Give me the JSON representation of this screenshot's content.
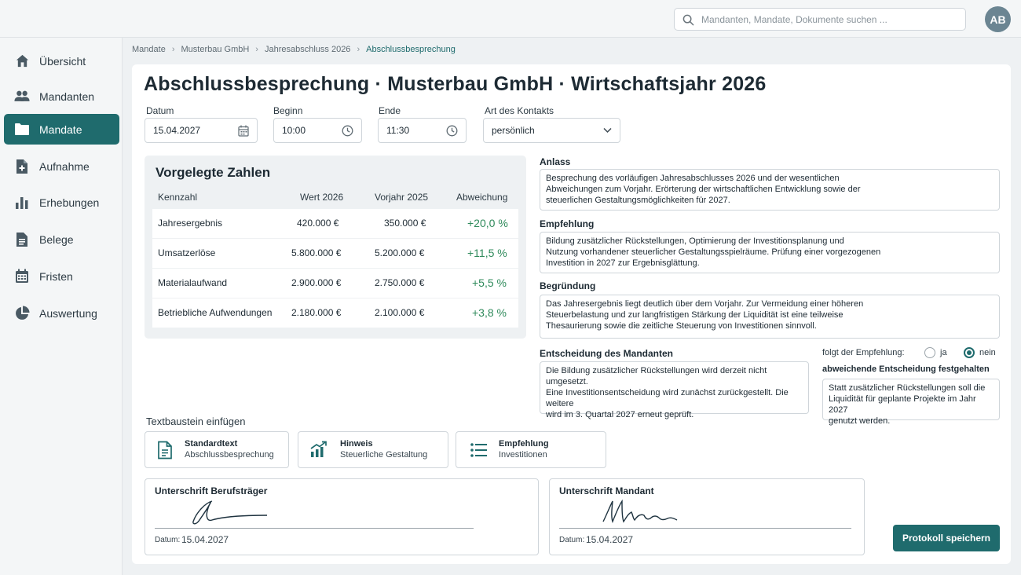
{
  "search": {
    "placeholder": "Mandanten, Mandate, Dokumente suchen ..."
  },
  "user": {
    "initials": "AB"
  },
  "sidebar": {
    "items": [
      {
        "label": "Übersicht",
        "icon": "home-icon"
      },
      {
        "label": "Mandanten",
        "icon": "people-icon"
      },
      {
        "label": "Mandate",
        "icon": "folder-icon",
        "active": true
      },
      {
        "label": "Aufnahme",
        "icon": "file-add-icon"
      },
      {
        "label": "Erhebungen",
        "icon": "bar-chart-icon"
      },
      {
        "label": "Belege",
        "icon": "document-icon"
      },
      {
        "label": "Fristen",
        "icon": "calendar-icon"
      },
      {
        "label": "Auswertung",
        "icon": "pie-chart-icon"
      }
    ]
  },
  "breadcrumb": [
    "Mandate",
    "Musterbau GmbH",
    "Jahresabschluss 2026",
    "Abschlussbesprechung"
  ],
  "page": {
    "title": "Abschlussbesprechung · Musterbau GmbH · Wirtschaftsjahr 2026"
  },
  "form": {
    "date_label": "Datum",
    "date_value": "15.04.2027",
    "start_label": "Beginn",
    "start_value": "10:00",
    "end_label": "Ende",
    "end_value": "11:30",
    "contact_label": "Art des Kontakts",
    "contact_value": "persönlich"
  },
  "figures": {
    "title": "Vorgelegte Zahlen",
    "headers": [
      "Kennzahl",
      "Wert 2026",
      "Vorjahr 2025",
      "Abweichung"
    ],
    "rows": [
      {
        "name": "Jahresergebnis",
        "value": "420.000 €",
        "prev": "350.000 €",
        "dev": "+20,0 %"
      },
      {
        "name": "Umsatzerlöse",
        "value": "5.800.000 €",
        "prev": "5.200.000 €",
        "dev": "+11,5 %"
      },
      {
        "name": "Materialaufwand",
        "value": "2.900.000 €",
        "prev": "2.750.000 €",
        "dev": "+5,5 %"
      },
      {
        "name": "Betriebliche Aufwendungen",
        "value": "2.180.000 €",
        "prev": "2.100.000 €",
        "dev": "+3,8 %"
      }
    ]
  },
  "notes": {
    "anlass_label": "Anlass",
    "anlass_lines": [
      "Besprechung des vorläufigen Jahresabschlusses 2026 und der wesentlichen",
      "Abweichungen zum Vorjahr. Erörterung der wirtschaftlichen Entwicklung sowie der",
      "steuerlichen Gestaltungsmöglichkeiten für 2027."
    ],
    "empfehlung_label": "Empfehlung",
    "empfehlung_lines": [
      "Bildung zusätzlicher Rückstellungen, Optimierung der Investitionsplanung und",
      "Nutzung vorhandener steuerlicher Gestaltungsspielräume. Prüfung einer vorgezogenen",
      "Investition in 2027 zur Ergebnisglättung."
    ],
    "begruendung_label": "Begründung",
    "begruendung_lines": [
      "Das Jahresergebnis liegt deutlich über dem Vorjahr. Zur Vermeidung einer höheren",
      "Steuerbelastung und zur langfristigen Stärkung der Liquidität ist eine teilweise",
      "Thesaurierung sowie die zeitliche Steuerung von Investitionen sinnvoll."
    ],
    "entscheidung_label": "Entscheidung des Mandanten",
    "entscheidung_lines": [
      "Die Bildung zusätzlicher Rückstellungen wird derzeit nicht umgesetzt.",
      "Eine Investitionsentscheidung wird zunächst zurückgestellt. Die weitere",
      "wird im 3. Quartal 2027 erneut geprüft."
    ],
    "follows_label": "folgt der Empfehlung:",
    "yes_label": "ja",
    "no_label": "nein",
    "follows_recommendation": false,
    "deviating_label": "abweichende Entscheidung festgehalten",
    "deviating_lines": [
      "Statt zusätzlicher Rückstellungen soll die",
      "Liquidität für geplante Projekte im Jahr 2027",
      "genutzt werden."
    ]
  },
  "snippets": {
    "label": "Textbaustein einfügen",
    "items": [
      {
        "title": "Standardtext",
        "subtitle": "Abschlussbesprechung",
        "icon": "document-icon"
      },
      {
        "title": "Hinweis",
        "subtitle": "Steuerliche Gestaltung",
        "icon": "growth-chart-icon"
      },
      {
        "title": "Empfehlung",
        "subtitle": "Investitionen",
        "icon": "list-icon"
      }
    ]
  },
  "signatures": {
    "advisor_label": "Unterschrift Berufsträger",
    "client_label": "Unterschrift Mandant",
    "date_label": "Datum:",
    "advisor_date": "15.04.2027",
    "client_date": "15.04.2027"
  },
  "actions": {
    "save_label": "Protokoll speichern"
  },
  "colors": {
    "accent": "#1f6b6d",
    "positive": "#2f8a5b"
  }
}
